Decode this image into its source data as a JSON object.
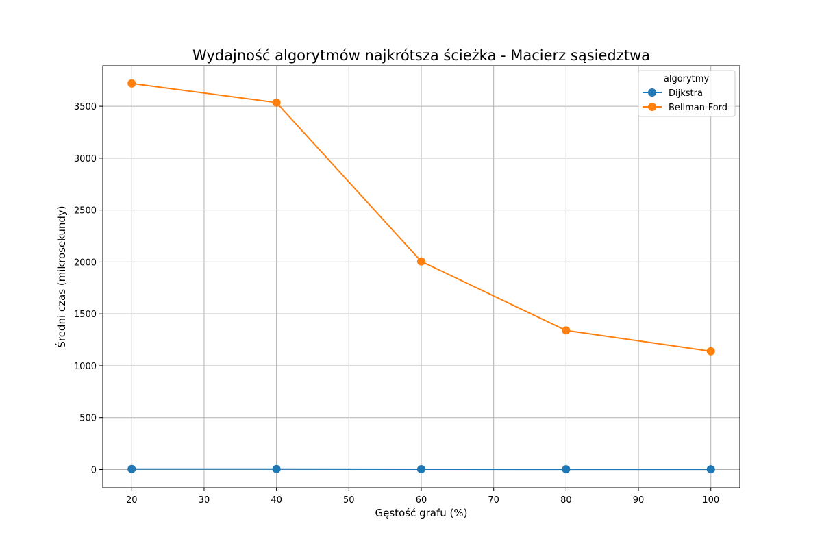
{
  "chart_data": {
    "type": "line",
    "title": "Wydajność algorytmów najkrótsza ścieżka - Macierz sąsiedztwa",
    "xlabel": "Gęstość grafu (%)",
    "ylabel": "Średni czas (mikrosekundy)",
    "x": [
      20,
      40,
      60,
      80,
      100
    ],
    "xlim": [
      16,
      104
    ],
    "ylim": [
      -175,
      3890
    ],
    "xticks": [
      20,
      30,
      40,
      50,
      60,
      70,
      80,
      90,
      100
    ],
    "yticks": [
      0,
      500,
      1000,
      1500,
      2000,
      2500,
      3000,
      3500
    ],
    "grid": true,
    "legend": {
      "title": "algorytmy",
      "placement": "top-right"
    },
    "series": [
      {
        "name": "Dijkstra",
        "color": "#1f77b4",
        "marker": "circle",
        "values": [
          5,
          5,
          3,
          2,
          2
        ]
      },
      {
        "name": "Bellman-Ford",
        "color": "#ff7f0e",
        "marker": "circle",
        "values": [
          3720,
          3535,
          2005,
          1340,
          1140
        ]
      }
    ]
  }
}
